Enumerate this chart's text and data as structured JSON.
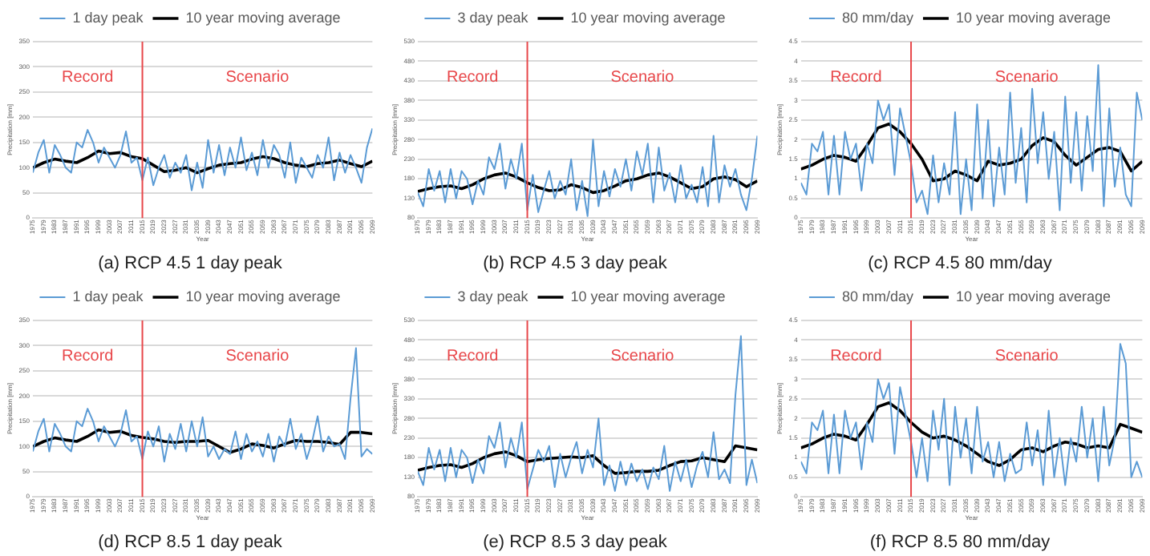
{
  "chart_data": [
    {
      "type": "line",
      "title": "(a) RCP 4.5 1 day peak",
      "xlabel": "Year",
      "ylabel": "Precipitation [mm]",
      "xlim": [
        1975,
        2099
      ],
      "xticks": [
        1975,
        1979,
        1983,
        1987,
        1991,
        1995,
        1999,
        2003,
        2007,
        2011,
        2015,
        2019,
        2023,
        2027,
        2031,
        2035,
        2039,
        2043,
        2047,
        2051,
        2055,
        2059,
        2063,
        2067,
        2071,
        2075,
        2079,
        2083,
        2087,
        2091,
        2095,
        2099
      ],
      "ylim": [
        0,
        350
      ],
      "yticks": [
        0,
        50,
        100,
        150,
        200,
        250,
        300,
        350
      ],
      "grid": "y",
      "legend": "top",
      "marker": "none",
      "annotations": [
        "Record",
        "Scenario"
      ],
      "ref_lines": [
        {
          "axis": "x",
          "value": 2015,
          "color": "#e8474a"
        }
      ],
      "x": [
        1975,
        1977,
        1979,
        1981,
        1983,
        1985,
        1987,
        1989,
        1991,
        1993,
        1995,
        1997,
        1999,
        2001,
        2003,
        2005,
        2007,
        2009,
        2011,
        2013,
        2015,
        2017,
        2019,
        2021,
        2023,
        2025,
        2027,
        2029,
        2031,
        2033,
        2035,
        2037,
        2039,
        2041,
        2043,
        2045,
        2047,
        2049,
        2051,
        2053,
        2055,
        2057,
        2059,
        2061,
        2063,
        2065,
        2067,
        2069,
        2071,
        2073,
        2075,
        2077,
        2079,
        2081,
        2083,
        2085,
        2087,
        2089,
        2091,
        2093,
        2095,
        2097,
        2099
      ],
      "series": [
        {
          "name": "1 day peak",
          "color": "#5b9bd5",
          "values": [
            90,
            130,
            155,
            90,
            145,
            125,
            100,
            90,
            150,
            140,
            175,
            150,
            110,
            140,
            120,
            100,
            125,
            172,
            110,
            120,
            75,
            120,
            65,
            100,
            125,
            80,
            110,
            90,
            125,
            55,
            110,
            60,
            155,
            90,
            145,
            85,
            140,
            100,
            160,
            95,
            130,
            85,
            155,
            100,
            145,
            125,
            80,
            150,
            70,
            120,
            100,
            80,
            125,
            100,
            160,
            75,
            130,
            90,
            125,
            100,
            70,
            140,
            178
          ]
        },
        {
          "name": "10 year moving average",
          "color": "#000000",
          "x": [
            1975,
            1979,
            1983,
            1987,
            1991,
            1995,
            1999,
            2003,
            2007,
            2011,
            2015,
            2019,
            2023,
            2027,
            2031,
            2035,
            2039,
            2043,
            2047,
            2051,
            2055,
            2059,
            2063,
            2067,
            2071,
            2075,
            2079,
            2083,
            2087,
            2091,
            2095,
            2099
          ],
          "values": [
            100,
            110,
            117,
            113,
            110,
            120,
            133,
            128,
            130,
            122,
            118,
            105,
            92,
            95,
            100,
            90,
            98,
            105,
            108,
            110,
            117,
            122,
            118,
            110,
            105,
            102,
            108,
            110,
            115,
            108,
            102,
            113
          ]
        }
      ]
    },
    {
      "type": "line",
      "title": "(b) RCP 4.5 3 day peak",
      "xlabel": "Year",
      "ylabel": "Precipitation [mm]",
      "xlim": [
        1975,
        2099
      ],
      "xticks": [
        1975,
        1979,
        1983,
        1987,
        1991,
        1995,
        1999,
        2003,
        2007,
        2011,
        2015,
        2019,
        2023,
        2027,
        2031,
        2035,
        2039,
        2043,
        2047,
        2051,
        2055,
        2059,
        2063,
        2067,
        2071,
        2075,
        2079,
        2083,
        2087,
        2091,
        2095,
        2099
      ],
      "ylim": [
        80,
        530
      ],
      "yticks": [
        80,
        130,
        180,
        230,
        280,
        330,
        380,
        430,
        480,
        530
      ],
      "grid": "y",
      "legend": "top",
      "marker": "none",
      "annotations": [
        "Record",
        "Scenario"
      ],
      "ref_lines": [
        {
          "axis": "x",
          "value": 2015,
          "color": "#e8474a"
        }
      ],
      "x": [
        1975,
        1977,
        1979,
        1981,
        1983,
        1985,
        1987,
        1989,
        1991,
        1993,
        1995,
        1997,
        1999,
        2001,
        2003,
        2005,
        2007,
        2009,
        2011,
        2013,
        2015,
        2017,
        2019,
        2021,
        2023,
        2025,
        2027,
        2029,
        2031,
        2033,
        2035,
        2037,
        2039,
        2041,
        2043,
        2045,
        2047,
        2049,
        2051,
        2053,
        2055,
        2057,
        2059,
        2061,
        2063,
        2065,
        2067,
        2069,
        2071,
        2073,
        2075,
        2077,
        2079,
        2081,
        2083,
        2085,
        2087,
        2089,
        2091,
        2093,
        2095,
        2097,
        2099
      ],
      "series": [
        {
          "name": "3 day peak",
          "color": "#5b9bd5",
          "values": [
            145,
            110,
            205,
            150,
            200,
            120,
            205,
            130,
            200,
            180,
            115,
            175,
            140,
            235,
            205,
            270,
            155,
            230,
            180,
            270,
            100,
            190,
            95,
            150,
            200,
            130,
            175,
            140,
            230,
            100,
            175,
            85,
            280,
            110,
            200,
            135,
            205,
            160,
            230,
            150,
            250,
            190,
            270,
            120,
            260,
            150,
            195,
            120,
            215,
            130,
            165,
            120,
            210,
            110,
            290,
            120,
            215,
            160,
            205,
            140,
            100,
            180,
            290
          ]
        },
        {
          "name": "10 year moving average",
          "color": "#000000",
          "x": [
            1975,
            1979,
            1983,
            1987,
            1991,
            1995,
            1999,
            2003,
            2007,
            2011,
            2015,
            2019,
            2023,
            2027,
            2031,
            2035,
            2039,
            2043,
            2047,
            2051,
            2055,
            2059,
            2063,
            2067,
            2071,
            2075,
            2079,
            2083,
            2087,
            2091,
            2095,
            2099
          ],
          "values": [
            148,
            155,
            160,
            162,
            155,
            165,
            180,
            190,
            195,
            185,
            170,
            158,
            150,
            152,
            165,
            158,
            145,
            150,
            162,
            175,
            180,
            190,
            195,
            185,
            170,
            155,
            160,
            180,
            185,
            178,
            160,
            175
          ]
        }
      ]
    },
    {
      "type": "line",
      "title": "(c) RCP 4.5 80 mm/day",
      "xlabel": "Year",
      "ylabel": "Precipitation [mm]",
      "xlim": [
        1975,
        2099
      ],
      "xticks": [
        1975,
        1979,
        1983,
        1987,
        1991,
        1995,
        1999,
        2003,
        2007,
        2011,
        2015,
        2019,
        2023,
        2027,
        2031,
        2035,
        2039,
        2043,
        2047,
        2051,
        2055,
        2059,
        2063,
        2067,
        2071,
        2075,
        2079,
        2083,
        2087,
        2091,
        2095,
        2099
      ],
      "ylim": [
        0,
        4.5
      ],
      "yticks": [
        0,
        0.5,
        1,
        1.5,
        2,
        2.5,
        3,
        3.5,
        4,
        4.5
      ],
      "grid": "y",
      "legend": "top",
      "marker": "none",
      "annotations": [
        "Record",
        "Scenario"
      ],
      "ref_lines": [
        {
          "axis": "x",
          "value": 2015,
          "color": "#e8474a"
        }
      ],
      "x": [
        1975,
        1977,
        1979,
        1981,
        1983,
        1985,
        1987,
        1989,
        1991,
        1993,
        1995,
        1997,
        1999,
        2001,
        2003,
        2005,
        2007,
        2009,
        2011,
        2013,
        2015,
        2017,
        2019,
        2021,
        2023,
        2025,
        2027,
        2029,
        2031,
        2033,
        2035,
        2037,
        2039,
        2041,
        2043,
        2045,
        2047,
        2049,
        2051,
        2053,
        2055,
        2057,
        2059,
        2061,
        2063,
        2065,
        2067,
        2069,
        2071,
        2073,
        2075,
        2077,
        2079,
        2081,
        2083,
        2085,
        2087,
        2089,
        2091,
        2093,
        2095,
        2097,
        2099
      ],
      "series": [
        {
          "name": "80 mm/day",
          "color": "#5b9bd5",
          "values": [
            0.9,
            0.6,
            1.9,
            1.7,
            2.2,
            0.6,
            2.1,
            0.6,
            2.2,
            1.5,
            1.9,
            0.7,
            1.9,
            1.4,
            3.0,
            2.5,
            2.9,
            1.1,
            2.8,
            2.1,
            1.4,
            0.4,
            0.7,
            0.1,
            1.6,
            0.4,
            1.4,
            0.6,
            2.7,
            0.1,
            1.5,
            0.2,
            2.9,
            0.5,
            2.5,
            0.3,
            1.8,
            0.6,
            3.2,
            0.9,
            2.3,
            0.4,
            3.3,
            1.4,
            2.7,
            1.0,
            2.2,
            0.2,
            3.1,
            0.9,
            2.7,
            0.7,
            2.6,
            1.2,
            3.9,
            0.3,
            2.8,
            0.8,
            1.8,
            0.6,
            0.3,
            3.2,
            2.5
          ]
        },
        {
          "name": "10 year moving average",
          "color": "#000000",
          "x": [
            1975,
            1979,
            1983,
            1987,
            1991,
            1995,
            1999,
            2003,
            2007,
            2011,
            2015,
            2019,
            2023,
            2027,
            2031,
            2035,
            2039,
            2043,
            2047,
            2051,
            2055,
            2059,
            2063,
            2067,
            2071,
            2075,
            2079,
            2083,
            2087,
            2091,
            2095,
            2099
          ],
          "values": [
            1.25,
            1.35,
            1.5,
            1.6,
            1.55,
            1.45,
            1.85,
            2.3,
            2.4,
            2.2,
            1.9,
            1.5,
            0.95,
            1.0,
            1.2,
            1.1,
            0.95,
            1.45,
            1.35,
            1.4,
            1.5,
            1.85,
            2.05,
            1.95,
            1.6,
            1.35,
            1.55,
            1.75,
            1.8,
            1.7,
            1.2,
            1.45
          ]
        }
      ]
    },
    {
      "type": "line",
      "title": "(d) RCP 8.5 1 day peak",
      "xlabel": "Year",
      "ylabel": "Precipitation [mm]",
      "xlim": [
        1975,
        2099
      ],
      "xticks": [
        1975,
        1979,
        1983,
        1987,
        1991,
        1995,
        1999,
        2003,
        2007,
        2011,
        2015,
        2019,
        2023,
        2027,
        2031,
        2035,
        2039,
        2043,
        2047,
        2051,
        2055,
        2059,
        2063,
        2067,
        2071,
        2075,
        2079,
        2083,
        2087,
        2091,
        2095,
        2099
      ],
      "ylim": [
        0,
        350
      ],
      "yticks": [
        0,
        50,
        100,
        150,
        200,
        250,
        300,
        350
      ],
      "grid": "y",
      "legend": "top",
      "marker": "none",
      "annotations": [
        "Record",
        "Scenario"
      ],
      "ref_lines": [
        {
          "axis": "x",
          "value": 2015,
          "color": "#e8474a"
        }
      ],
      "x": [
        1975,
        1977,
        1979,
        1981,
        1983,
        1985,
        1987,
        1989,
        1991,
        1993,
        1995,
        1997,
        1999,
        2001,
        2003,
        2005,
        2007,
        2009,
        2011,
        2013,
        2015,
        2017,
        2019,
        2021,
        2023,
        2025,
        2027,
        2029,
        2031,
        2033,
        2035,
        2037,
        2039,
        2041,
        2043,
        2045,
        2047,
        2049,
        2051,
        2053,
        2055,
        2057,
        2059,
        2061,
        2063,
        2065,
        2067,
        2069,
        2071,
        2073,
        2075,
        2077,
        2079,
        2081,
        2083,
        2085,
        2087,
        2089,
        2091,
        2093,
        2095,
        2097,
        2099
      ],
      "series": [
        {
          "name": "1 day peak",
          "color": "#5b9bd5",
          "values": [
            90,
            130,
            155,
            90,
            145,
            125,
            100,
            90,
            150,
            140,
            175,
            150,
            110,
            140,
            120,
            100,
            125,
            172,
            110,
            120,
            75,
            130,
            100,
            140,
            70,
            125,
            95,
            145,
            90,
            150,
            100,
            158,
            80,
            100,
            75,
            95,
            85,
            130,
            75,
            125,
            90,
            110,
            80,
            125,
            70,
            120,
            100,
            155,
            95,
            125,
            75,
            110,
            160,
            90,
            120,
            100,
            105,
            75,
            195,
            295,
            80,
            95,
            85
          ]
        },
        {
          "name": "10 year moving average",
          "color": "#000000",
          "x": [
            1975,
            1979,
            1983,
            1987,
            1991,
            1995,
            1999,
            2003,
            2007,
            2011,
            2015,
            2019,
            2023,
            2027,
            2031,
            2035,
            2039,
            2043,
            2047,
            2051,
            2055,
            2059,
            2063,
            2067,
            2071,
            2075,
            2079,
            2083,
            2087,
            2091,
            2095,
            2099
          ],
          "values": [
            100,
            110,
            117,
            113,
            110,
            120,
            133,
            128,
            130,
            122,
            118,
            115,
            110,
            108,
            110,
            110,
            112,
            100,
            88,
            95,
            105,
            102,
            97,
            105,
            112,
            110,
            110,
            108,
            104,
            128,
            128,
            125
          ]
        }
      ]
    },
    {
      "type": "line",
      "title": "(e) RCP 8.5 3 day peak",
      "xlabel": "Year",
      "ylabel": "Precipitation [mm]",
      "xlim": [
        1975,
        2099
      ],
      "xticks": [
        1975,
        1979,
        1983,
        1987,
        1991,
        1995,
        1999,
        2003,
        2007,
        2011,
        2015,
        2019,
        2023,
        2027,
        2031,
        2035,
        2039,
        2043,
        2047,
        2051,
        2055,
        2059,
        2063,
        2067,
        2071,
        2075,
        2079,
        2083,
        2087,
        2091,
        2095,
        2099
      ],
      "ylim": [
        80,
        530
      ],
      "yticks": [
        80,
        130,
        180,
        230,
        280,
        330,
        380,
        430,
        480,
        530
      ],
      "grid": "y",
      "legend": "top",
      "marker": "none",
      "annotations": [
        "Record",
        "Scenario"
      ],
      "ref_lines": [
        {
          "axis": "x",
          "value": 2015,
          "color": "#e8474a"
        }
      ],
      "x": [
        1975,
        1977,
        1979,
        1981,
        1983,
        1985,
        1987,
        1989,
        1991,
        1993,
        1995,
        1997,
        1999,
        2001,
        2003,
        2005,
        2007,
        2009,
        2011,
        2013,
        2015,
        2017,
        2019,
        2021,
        2023,
        2025,
        2027,
        2029,
        2031,
        2033,
        2035,
        2037,
        2039,
        2041,
        2043,
        2045,
        2047,
        2049,
        2051,
        2053,
        2055,
        2057,
        2059,
        2061,
        2063,
        2065,
        2067,
        2069,
        2071,
        2073,
        2075,
        2077,
        2079,
        2081,
        2083,
        2085,
        2087,
        2089,
        2091,
        2093,
        2095,
        2097,
        2099
      ],
      "series": [
        {
          "name": "3 day peak",
          "color": "#5b9bd5",
          "values": [
            145,
            110,
            205,
            150,
            200,
            120,
            205,
            130,
            200,
            180,
            115,
            175,
            140,
            235,
            205,
            270,
            155,
            230,
            180,
            270,
            100,
            150,
            200,
            170,
            210,
            105,
            190,
            130,
            180,
            220,
            140,
            200,
            155,
            280,
            110,
            160,
            95,
            170,
            110,
            165,
            120,
            150,
            100,
            155,
            125,
            210,
            95,
            170,
            120,
            175,
            105,
            160,
            195,
            130,
            245,
            125,
            150,
            115,
            340,
            490,
            110,
            175,
            115
          ]
        },
        {
          "name": "10 year moving average",
          "color": "#000000",
          "x": [
            1975,
            1979,
            1983,
            1987,
            1991,
            1995,
            1999,
            2003,
            2007,
            2011,
            2015,
            2019,
            2023,
            2027,
            2031,
            2035,
            2039,
            2043,
            2047,
            2051,
            2055,
            2059,
            2063,
            2067,
            2071,
            2075,
            2079,
            2083,
            2087,
            2091,
            2095,
            2099
          ],
          "values": [
            148,
            155,
            160,
            162,
            155,
            165,
            180,
            190,
            195,
            185,
            170,
            175,
            178,
            180,
            182,
            180,
            185,
            160,
            140,
            142,
            145,
            145,
            148,
            160,
            170,
            172,
            180,
            175,
            170,
            210,
            205,
            200
          ]
        }
      ]
    },
    {
      "type": "line",
      "title": "(f) RCP 8.5 80 mm/day",
      "xlabel": "Year",
      "ylabel": "Precipitation [mm]",
      "xlim": [
        1975,
        2099
      ],
      "xticks": [
        1975,
        1979,
        1983,
        1987,
        1991,
        1995,
        1999,
        2003,
        2007,
        2011,
        2015,
        2019,
        2023,
        2027,
        2031,
        2035,
        2039,
        2043,
        2047,
        2051,
        2055,
        2059,
        2063,
        2067,
        2071,
        2075,
        2079,
        2083,
        2087,
        2091,
        2095,
        2099
      ],
      "ylim": [
        0,
        4.5
      ],
      "yticks": [
        0,
        0.5,
        1,
        1.5,
        2,
        2.5,
        3,
        3.5,
        4,
        4.5
      ],
      "grid": "y",
      "legend": "top",
      "marker": "none",
      "annotations": [
        "Record",
        "Scenario"
      ],
      "ref_lines": [
        {
          "axis": "x",
          "value": 2015,
          "color": "#e8474a"
        }
      ],
      "x": [
        1975,
        1977,
        1979,
        1981,
        1983,
        1985,
        1987,
        1989,
        1991,
        1993,
        1995,
        1997,
        1999,
        2001,
        2003,
        2005,
        2007,
        2009,
        2011,
        2013,
        2015,
        2017,
        2019,
        2021,
        2023,
        2025,
        2027,
        2029,
        2031,
        2033,
        2035,
        2037,
        2039,
        2041,
        2043,
        2045,
        2047,
        2049,
        2051,
        2053,
        2055,
        2057,
        2059,
        2061,
        2063,
        2065,
        2067,
        2069,
        2071,
        2073,
        2075,
        2077,
        2079,
        2081,
        2083,
        2085,
        2087,
        2089,
        2091,
        2093,
        2095,
        2097,
        2099
      ],
      "series": [
        {
          "name": "80 mm/day",
          "color": "#5b9bd5",
          "values": [
            0.9,
            0.6,
            1.9,
            1.7,
            2.2,
            0.6,
            2.1,
            0.6,
            2.2,
            1.5,
            1.9,
            0.7,
            1.9,
            1.4,
            3.0,
            2.5,
            2.9,
            1.1,
            2.8,
            2.1,
            1.4,
            0.5,
            1.5,
            0.4,
            2.2,
            1.2,
            2.5,
            0.3,
            2.3,
            1.0,
            2.0,
            0.6,
            2.3,
            0.9,
            1.4,
            0.5,
            1.4,
            0.4,
            1.1,
            0.6,
            0.7,
            1.9,
            0.8,
            1.7,
            0.3,
            2.2,
            0.5,
            1.5,
            0.3,
            1.5,
            0.9,
            2.3,
            1.0,
            2.0,
            0.4,
            2.3,
            0.8,
            1.5,
            3.9,
            3.4,
            0.5,
            0.9,
            0.5
          ]
        },
        {
          "name": "10 year moving average",
          "color": "#000000",
          "x": [
            1975,
            1979,
            1983,
            1987,
            1991,
            1995,
            1999,
            2003,
            2007,
            2011,
            2015,
            2019,
            2023,
            2027,
            2031,
            2035,
            2039,
            2043,
            2047,
            2051,
            2055,
            2059,
            2063,
            2067,
            2071,
            2075,
            2079,
            2083,
            2087,
            2091,
            2095,
            2099
          ],
          "values": [
            1.25,
            1.35,
            1.5,
            1.6,
            1.55,
            1.45,
            1.85,
            2.3,
            2.4,
            2.2,
            1.9,
            1.65,
            1.5,
            1.55,
            1.45,
            1.3,
            1.1,
            0.9,
            0.8,
            0.95,
            1.2,
            1.25,
            1.15,
            1.3,
            1.4,
            1.35,
            1.25,
            1.3,
            1.25,
            1.85,
            1.75,
            1.65
          ]
        }
      ]
    }
  ]
}
